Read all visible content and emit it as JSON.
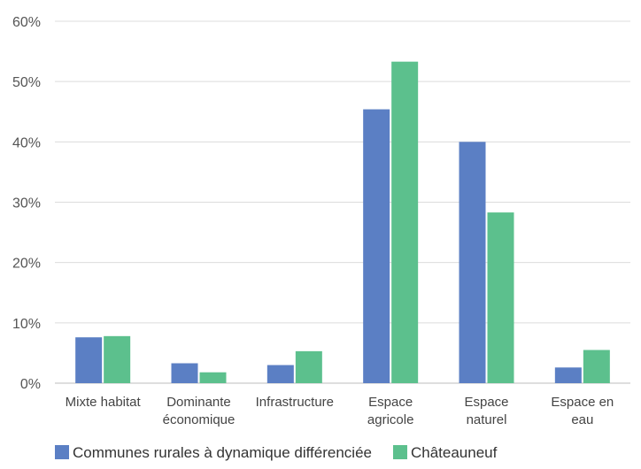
{
  "chart_data": {
    "type": "bar",
    "categories": [
      [
        "Mixte habitat"
      ],
      [
        "Dominante",
        "économique"
      ],
      [
        "Infrastructure"
      ],
      [
        "Espace",
        "agricole"
      ],
      [
        "Espace",
        "naturel"
      ],
      [
        "Espace en",
        "eau"
      ]
    ],
    "series": [
      {
        "name": "Communes rurales à dynamique différenciée",
        "color": "#5b7fc4",
        "values": [
          7.6,
          3.3,
          3.0,
          45.4,
          40.0,
          2.6
        ]
      },
      {
        "name": "Châteauneuf",
        "color": "#5cc08d",
        "values": [
          7.8,
          1.8,
          5.3,
          53.3,
          28.3,
          5.5
        ]
      }
    ],
    "y_ticks": [
      "0%",
      "10%",
      "20%",
      "30%",
      "40%",
      "50%",
      "60%"
    ],
    "ylim": [
      0,
      60
    ],
    "grid": true,
    "legend_position": "bottom"
  }
}
